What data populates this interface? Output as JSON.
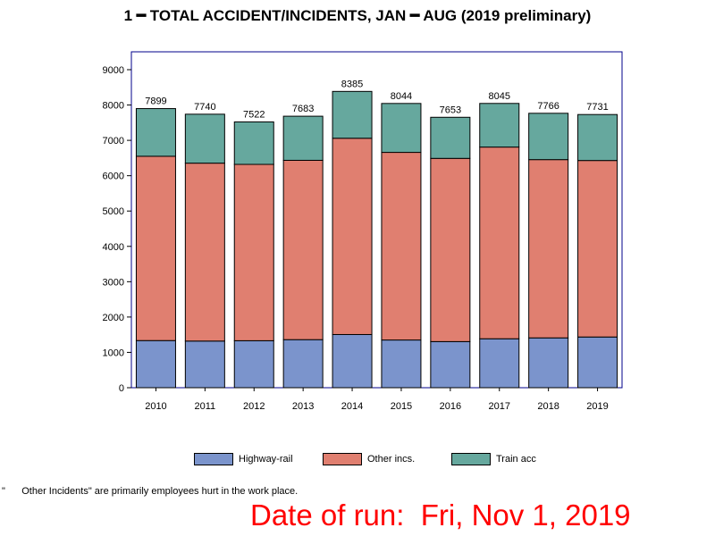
{
  "chart_data": {
    "type": "bar",
    "stacked": true,
    "title": "1 ━ TOTAL ACCIDENT/INCIDENTS, JAN ━ AUG (2019 preliminary)",
    "categories": [
      "2010",
      "2011",
      "2012",
      "2013",
      "2014",
      "2015",
      "2016",
      "2017",
      "2018",
      "2019"
    ],
    "series": [
      {
        "name": "Highway-rail",
        "color": "#7b94cc",
        "values": [
          1334,
          1320,
          1330,
          1360,
          1505,
          1350,
          1305,
          1385,
          1410,
          1435
        ]
      },
      {
        "name": "Other incs.",
        "color": "#e07f70",
        "values": [
          5216,
          5035,
          4990,
          5075,
          5555,
          5310,
          5185,
          5425,
          5045,
          4995
        ]
      },
      {
        "name": "Train acc",
        "color": "#66a89e",
        "values": [
          1349,
          1385,
          1202,
          1248,
          1325,
          1384,
          1163,
          1235,
          1311,
          1301
        ]
      }
    ],
    "totals": [
      "7899",
      "7740",
      "7522",
      "7683",
      "8385",
      "8044",
      "7653",
      "8045",
      "7766",
      "7731"
    ],
    "yticks": [
      "0",
      "1000",
      "2000",
      "3000",
      "4000",
      "5000",
      "6000",
      "7000",
      "8000",
      "9000"
    ],
    "ylim": [
      0,
      9000
    ],
    "xlabel": "",
    "ylabel": "",
    "grid": false,
    "legend_position": "bottom",
    "frame_color": "#00008b"
  },
  "footnote": "\"      Other Incidents\" are primarily employees hurt in the work place.",
  "run_date": "Date of run:  Fri, Nov 1, 2019"
}
